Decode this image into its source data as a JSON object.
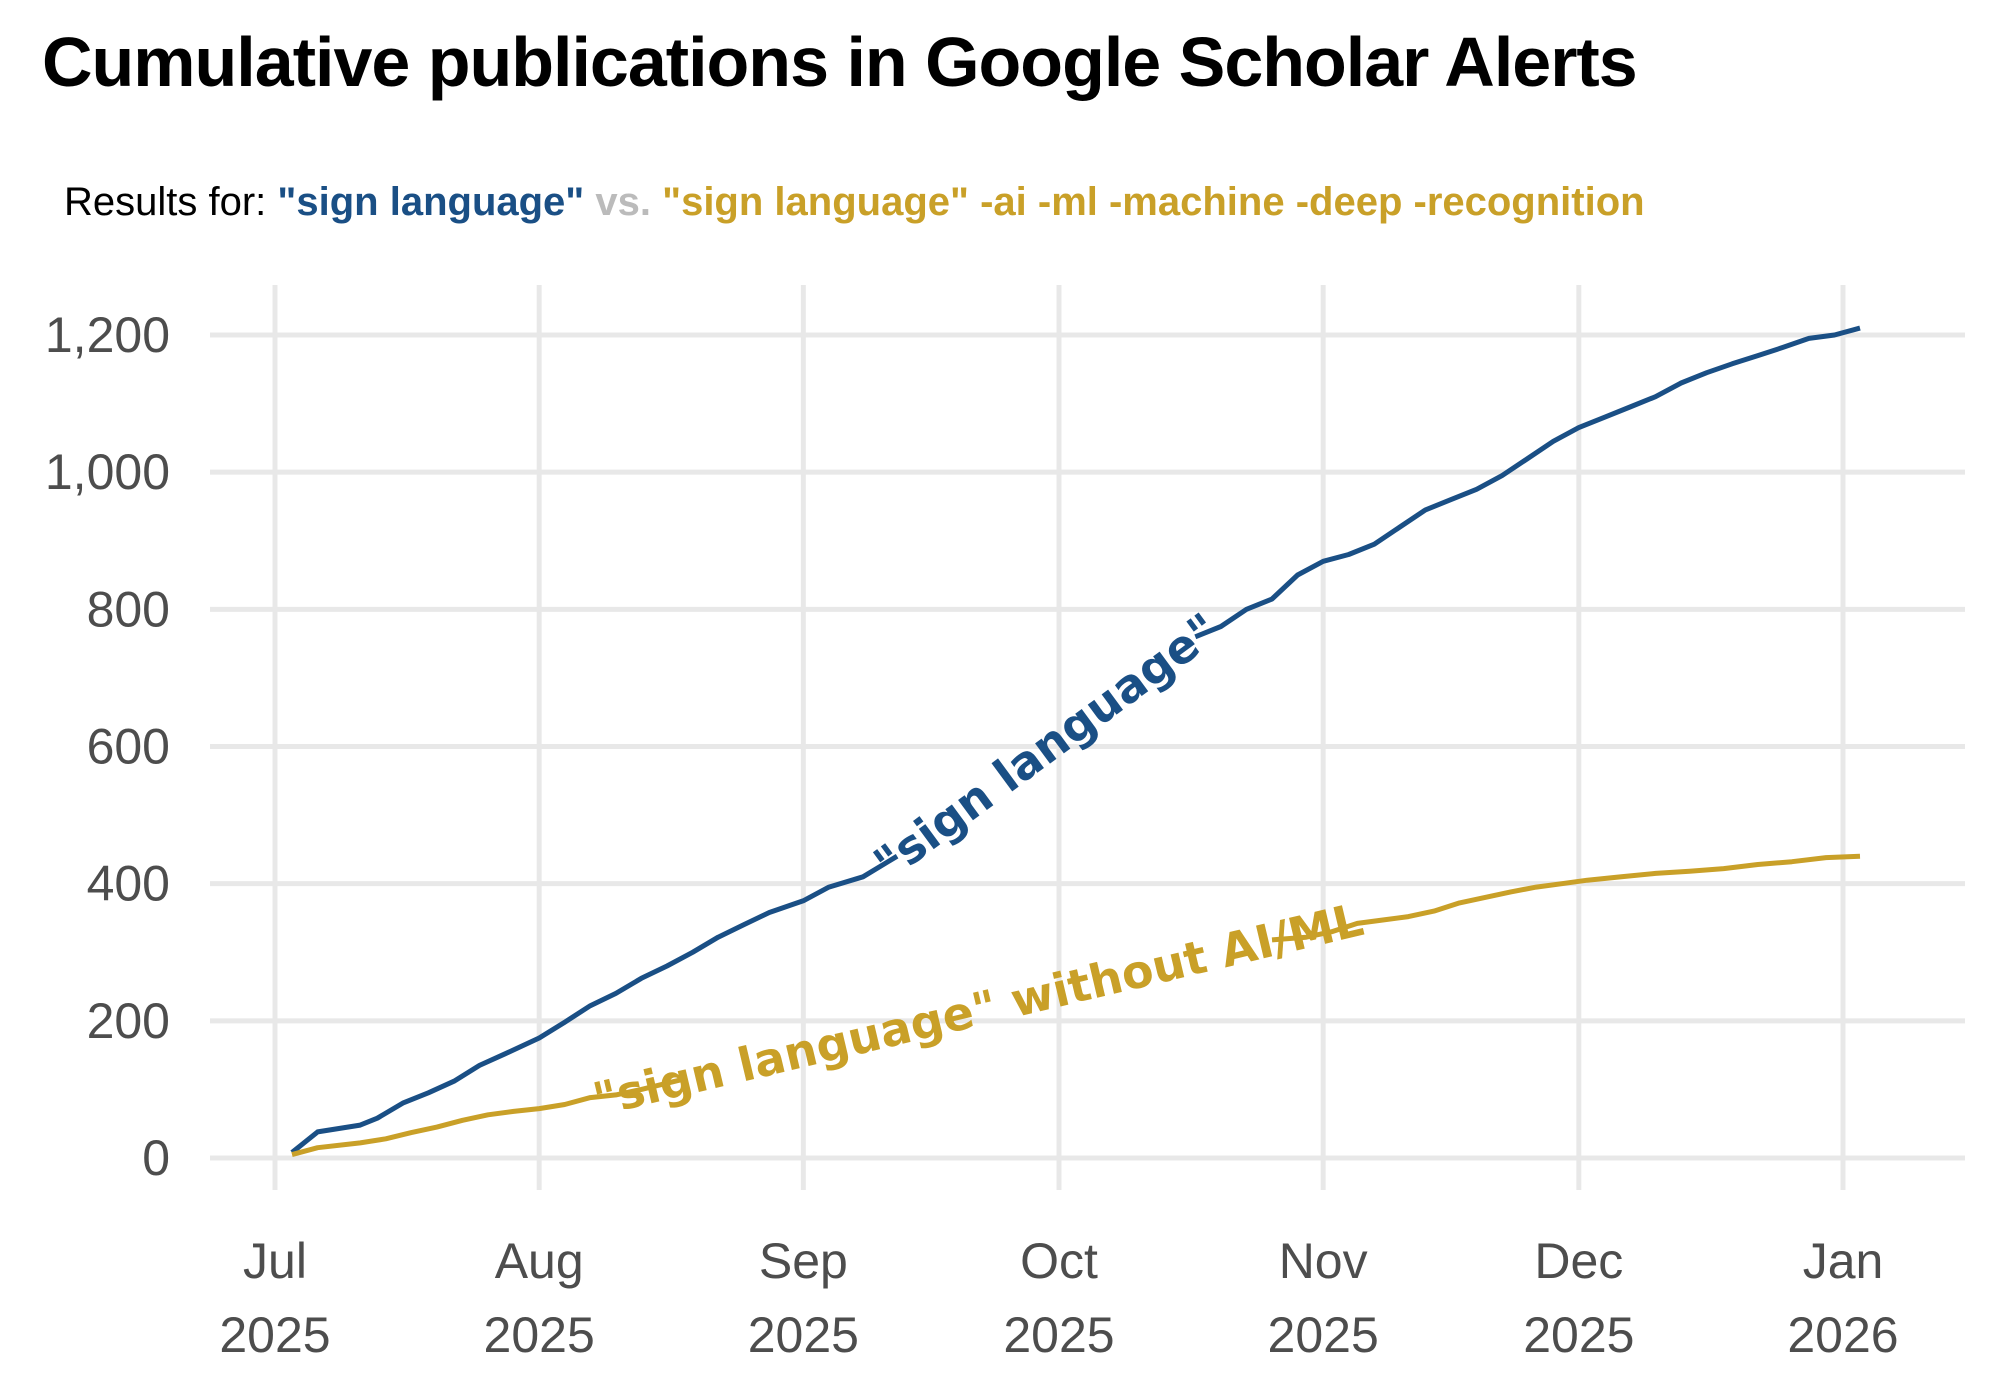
{
  "subtitle": {
    "prefix": "Results for: ",
    "query_all": "\"sign language\"",
    "vs": " vs. ",
    "query_filtered": "\"sign language\" -ai -ml -machine -deep -recognition"
  },
  "colors": {
    "blue": "#1a4f85",
    "gold": "#c9a028",
    "vs_grey": "#bbbbbb",
    "grid": "#e8e8e8"
  },
  "chart_data": {
    "type": "line",
    "title": "Cumulative publications in Google Scholar Alerts",
    "xlabel": "",
    "ylabel": "",
    "ylim": [
      0,
      1200
    ],
    "xlim": [
      "2025-06-29",
      "2026-01-21"
    ],
    "grid": true,
    "legend": "none (direct labels on lines)",
    "y_ticks": [
      "0",
      "200",
      "400",
      "600",
      "800",
      "1,000",
      "1,200"
    ],
    "x_ticks": [
      {
        "date": "2025-07-01",
        "line1": "Jul",
        "line2": "2025"
      },
      {
        "date": "2025-08-01",
        "line1": "Aug",
        "line2": "2025"
      },
      {
        "date": "2025-09-01",
        "line1": "Sep",
        "line2": "2025"
      },
      {
        "date": "2025-10-01",
        "line1": "Oct",
        "line2": "2025"
      },
      {
        "date": "2025-11-01",
        "line1": "Nov",
        "line2": "2025"
      },
      {
        "date": "2025-12-01",
        "line1": "Dec",
        "line2": "2025"
      },
      {
        "date": "2026-01-01",
        "line1": "Jan",
        "line2": "2026"
      }
    ],
    "series": [
      {
        "name": "\"sign language\"",
        "color": "#1a4f85",
        "points": [
          [
            "2025-07-03",
            8
          ],
          [
            "2025-07-06",
            38
          ],
          [
            "2025-07-11",
            48
          ],
          [
            "2025-07-13",
            58
          ],
          [
            "2025-07-16",
            80
          ],
          [
            "2025-07-19",
            95
          ],
          [
            "2025-07-22",
            112
          ],
          [
            "2025-07-25",
            135
          ],
          [
            "2025-07-28",
            152
          ],
          [
            "2025-08-01",
            175
          ],
          [
            "2025-08-04",
            198
          ],
          [
            "2025-08-07",
            222
          ],
          [
            "2025-08-10",
            240
          ],
          [
            "2025-08-13",
            262
          ],
          [
            "2025-08-16",
            280
          ],
          [
            "2025-08-19",
            300
          ],
          [
            "2025-08-22",
            322
          ],
          [
            "2025-08-25",
            340
          ],
          [
            "2025-08-28",
            358
          ],
          [
            "2025-09-01",
            375
          ],
          [
            "2025-09-04",
            395
          ],
          [
            "2025-09-08",
            410
          ],
          [
            "2025-09-12",
            440
          ],
          [
            "2025-09-17",
            490
          ],
          [
            "2025-09-22",
            540
          ],
          [
            "2025-09-27",
            590
          ],
          [
            "2025-10-02",
            640
          ],
          [
            "2025-10-07",
            690
          ],
          [
            "2025-10-12",
            730
          ],
          [
            "2025-10-17",
            760
          ],
          [
            "2025-10-20",
            775
          ],
          [
            "2025-10-23",
            800
          ],
          [
            "2025-10-26",
            815
          ],
          [
            "2025-10-29",
            850
          ],
          [
            "2025-11-01",
            870
          ],
          [
            "2025-11-04",
            880
          ],
          [
            "2025-11-07",
            895
          ],
          [
            "2025-11-10",
            920
          ],
          [
            "2025-11-13",
            945
          ],
          [
            "2025-11-16",
            960
          ],
          [
            "2025-11-19",
            975
          ],
          [
            "2025-11-22",
            995
          ],
          [
            "2025-11-25",
            1020
          ],
          [
            "2025-11-28",
            1045
          ],
          [
            "2025-12-01",
            1065
          ],
          [
            "2025-12-04",
            1080
          ],
          [
            "2025-12-07",
            1095
          ],
          [
            "2025-12-10",
            1110
          ],
          [
            "2025-12-13",
            1130
          ],
          [
            "2025-12-16",
            1145
          ],
          [
            "2025-12-19",
            1158
          ],
          [
            "2025-12-22",
            1170
          ],
          [
            "2025-12-25",
            1182
          ],
          [
            "2025-12-28",
            1195
          ],
          [
            "2025-12-31",
            1200
          ],
          [
            "2026-01-03",
            1210
          ]
        ]
      },
      {
        "name": "\"sign language\" without AI/ML",
        "color": "#c9a028",
        "points": [
          [
            "2025-07-03",
            5
          ],
          [
            "2025-07-06",
            15
          ],
          [
            "2025-07-11",
            22
          ],
          [
            "2025-07-14",
            28
          ],
          [
            "2025-07-17",
            37
          ],
          [
            "2025-07-20",
            45
          ],
          [
            "2025-07-23",
            55
          ],
          [
            "2025-07-26",
            63
          ],
          [
            "2025-07-29",
            68
          ],
          [
            "2025-08-01",
            72
          ],
          [
            "2025-08-04",
            78
          ],
          [
            "2025-08-07",
            88
          ],
          [
            "2025-08-10",
            92
          ],
          [
            "2025-08-13",
            100
          ],
          [
            "2025-08-18",
            115
          ],
          [
            "2025-08-25",
            140
          ],
          [
            "2025-09-01",
            170
          ],
          [
            "2025-09-10",
            205
          ],
          [
            "2025-09-20",
            240
          ],
          [
            "2025-10-01",
            272
          ],
          [
            "2025-10-10",
            295
          ],
          [
            "2025-10-20",
            310
          ],
          [
            "2025-10-26",
            318
          ],
          [
            "2025-10-30",
            322
          ],
          [
            "2025-11-02",
            330
          ],
          [
            "2025-11-05",
            342
          ],
          [
            "2025-11-08",
            347
          ],
          [
            "2025-11-11",
            352
          ],
          [
            "2025-11-14",
            360
          ],
          [
            "2025-11-17",
            372
          ],
          [
            "2025-11-20",
            380
          ],
          [
            "2025-11-23",
            388
          ],
          [
            "2025-11-26",
            395
          ],
          [
            "2025-11-29",
            400
          ],
          [
            "2025-12-02",
            405
          ],
          [
            "2025-12-06",
            410
          ],
          [
            "2025-12-10",
            415
          ],
          [
            "2025-12-14",
            418
          ],
          [
            "2025-12-18",
            422
          ],
          [
            "2025-12-22",
            428
          ],
          [
            "2025-12-26",
            432
          ],
          [
            "2025-12-30",
            438
          ],
          [
            "2026-01-03",
            440
          ]
        ]
      }
    ],
    "annotations": [
      {
        "text": "\"sign language\"",
        "series": 0,
        "from": "2025-09-12",
        "to": "2025-10-17"
      },
      {
        "text": "\"sign language\" without AI/ML",
        "series": 1,
        "from": "2025-08-18",
        "to": "2025-10-26"
      }
    ]
  }
}
